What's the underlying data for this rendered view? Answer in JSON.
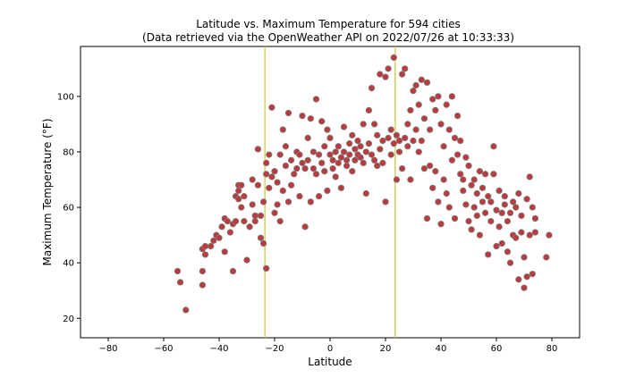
{
  "chart_data": {
    "type": "scatter",
    "title_line1": "Latitude vs. Maximum Temperature for 594 cities",
    "title_line2": "(Data retrieved via the OpenWeather API on 2022/07/26 at 10:33:33)",
    "xlabel": "Latitude",
    "ylabel": "Maximum Temperature (°F)",
    "xlim": [
      -90,
      90
    ],
    "ylim": [
      13,
      118
    ],
    "xticks": [
      -80,
      -60,
      -40,
      -20,
      0,
      20,
      40,
      60,
      80
    ],
    "yticks": [
      20,
      40,
      60,
      80,
      100
    ],
    "grid": false,
    "reference_lines_x": [
      -23.5,
      23.5
    ],
    "colors": {
      "marker_fill": "#c2373a",
      "marker_edge": "#7a7a7a",
      "reference_line": "#d4c84a"
    },
    "points": [
      [
        -55,
        37
      ],
      [
        -54,
        33
      ],
      [
        -52,
        23
      ],
      [
        -46,
        45
      ],
      [
        -46,
        37
      ],
      [
        -46,
        32
      ],
      [
        -45,
        43
      ],
      [
        -45,
        46
      ],
      [
        -43,
        46
      ],
      [
        -42,
        48
      ],
      [
        -41,
        50
      ],
      [
        -40,
        49
      ],
      [
        -39,
        53
      ],
      [
        -38,
        56
      ],
      [
        -38,
        44
      ],
      [
        -37,
        55
      ],
      [
        -36,
        51
      ],
      [
        -35,
        37
      ],
      [
        -35,
        54
      ],
      [
        -34,
        64
      ],
      [
        -34,
        55
      ],
      [
        -33,
        66
      ],
      [
        -33,
        68
      ],
      [
        -33,
        63
      ],
      [
        -32,
        68
      ],
      [
        -32,
        60
      ],
      [
        -31,
        55
      ],
      [
        -31,
        64
      ],
      [
        -30,
        41
      ],
      [
        -29,
        53
      ],
      [
        -28,
        70
      ],
      [
        -28,
        61
      ],
      [
        -27,
        55
      ],
      [
        -27,
        57
      ],
      [
        -26,
        81
      ],
      [
        -26,
        68
      ],
      [
        -25,
        49
      ],
      [
        -25,
        57
      ],
      [
        -24,
        47
      ],
      [
        -24,
        62
      ],
      [
        -23,
        72
      ],
      [
        -23,
        38
      ],
      [
        -23,
        76
      ],
      [
        -22,
        79
      ],
      [
        -22,
        67
      ],
      [
        -21,
        71
      ],
      [
        -21,
        96
      ],
      [
        -20,
        73
      ],
      [
        -20,
        58
      ],
      [
        -19,
        69
      ],
      [
        -19,
        61
      ],
      [
        -18,
        55
      ],
      [
        -18,
        79
      ],
      [
        -17,
        88
      ],
      [
        -17,
        66
      ],
      [
        -16,
        82
      ],
      [
        -16,
        75
      ],
      [
        -15,
        94
      ],
      [
        -15,
        62
      ],
      [
        -14,
        68
      ],
      [
        -14,
        77
      ],
      [
        -13,
        72
      ],
      [
        -12,
        74
      ],
      [
        -12,
        80
      ],
      [
        -11,
        64
      ],
      [
        -11,
        79
      ],
      [
        -10,
        93
      ],
      [
        -10,
        76
      ],
      [
        -9,
        53
      ],
      [
        -9,
        74
      ],
      [
        -8,
        85
      ],
      [
        -8,
        77
      ],
      [
        -7,
        92
      ],
      [
        -7,
        62
      ],
      [
        -6,
        80
      ],
      [
        -6,
        74
      ],
      [
        -5,
        99
      ],
      [
        -5,
        72
      ],
      [
        -4,
        79
      ],
      [
        -4,
        64
      ],
      [
        -3,
        91
      ],
      [
        -3,
        76
      ],
      [
        -2,
        82
      ],
      [
        -2,
        73
      ],
      [
        -1,
        88
      ],
      [
        -1,
        66
      ],
      [
        0,
        85
      ],
      [
        0,
        79
      ],
      [
        1,
        77
      ],
      [
        1,
        74
      ],
      [
        2,
        80
      ],
      [
        2,
        71
      ],
      [
        3,
        76
      ],
      [
        3,
        82
      ],
      [
        4,
        78
      ],
      [
        4,
        67
      ],
      [
        5,
        80
      ],
      [
        5,
        89
      ],
      [
        6,
        75
      ],
      [
        6,
        77
      ],
      [
        7,
        83
      ],
      [
        7,
        79
      ],
      [
        8,
        86
      ],
      [
        8,
        73
      ],
      [
        9,
        81
      ],
      [
        9,
        77
      ],
      [
        10,
        84
      ],
      [
        10,
        79
      ],
      [
        11,
        78
      ],
      [
        11,
        82
      ],
      [
        12,
        90
      ],
      [
        12,
        76
      ],
      [
        13,
        80
      ],
      [
        13,
        65
      ],
      [
        14,
        95
      ],
      [
        14,
        83
      ],
      [
        15,
        103
      ],
      [
        15,
        79
      ],
      [
        16,
        77
      ],
      [
        16,
        90
      ],
      [
        17,
        86
      ],
      [
        17,
        75
      ],
      [
        18,
        108
      ],
      [
        18,
        81
      ],
      [
        19,
        84
      ],
      [
        19,
        76
      ],
      [
        20,
        107
      ],
      [
        20,
        62
      ],
      [
        21,
        110
      ],
      [
        21,
        85
      ],
      [
        22,
        88
      ],
      [
        22,
        79
      ],
      [
        23,
        114
      ],
      [
        23,
        83
      ],
      [
        24,
        86
      ],
      [
        24,
        70
      ],
      [
        25,
        84
      ],
      [
        25,
        80
      ],
      [
        26,
        108
      ],
      [
        26,
        74
      ],
      [
        27,
        110
      ],
      [
        27,
        85
      ],
      [
        28,
        90
      ],
      [
        28,
        82
      ],
      [
        29,
        95
      ],
      [
        29,
        70
      ],
      [
        30,
        102
      ],
      [
        30,
        84
      ],
      [
        31,
        104
      ],
      [
        31,
        88
      ],
      [
        32,
        97
      ],
      [
        32,
        80
      ],
      [
        33,
        106
      ],
      [
        33,
        84
      ],
      [
        34,
        92
      ],
      [
        34,
        74
      ],
      [
        35,
        105
      ],
      [
        35,
        56
      ],
      [
        36,
        88
      ],
      [
        36,
        75
      ],
      [
        37,
        99
      ],
      [
        37,
        67
      ],
      [
        38,
        95
      ],
      [
        38,
        73
      ],
      [
        39,
        100
      ],
      [
        39,
        62
      ],
      [
        40,
        90
      ],
      [
        40,
        54
      ],
      [
        41,
        82
      ],
      [
        41,
        70
      ],
      [
        42,
        97
      ],
      [
        42,
        65
      ],
      [
        43,
        88
      ],
      [
        43,
        60
      ],
      [
        44,
        100
      ],
      [
        44,
        77
      ],
      [
        45,
        85
      ],
      [
        45,
        56
      ],
      [
        46,
        79
      ],
      [
        46,
        93
      ],
      [
        47,
        84
      ],
      [
        47,
        72
      ],
      [
        48,
        70
      ],
      [
        48,
        66
      ],
      [
        49,
        78
      ],
      [
        49,
        61
      ],
      [
        50,
        75
      ],
      [
        50,
        55
      ],
      [
        51,
        68
      ],
      [
        51,
        52
      ],
      [
        52,
        70
      ],
      [
        52,
        60
      ],
      [
        53,
        65
      ],
      [
        53,
        57
      ],
      [
        54,
        73
      ],
      [
        54,
        50
      ],
      [
        55,
        67
      ],
      [
        55,
        62
      ],
      [
        56,
        72
      ],
      [
        56,
        58
      ],
      [
        57,
        64
      ],
      [
        57,
        43
      ],
      [
        58,
        62
      ],
      [
        58,
        55
      ],
      [
        59,
        72
      ],
      [
        59,
        82
      ],
      [
        60,
        59
      ],
      [
        60,
        46
      ],
      [
        61,
        66
      ],
      [
        61,
        53
      ],
      [
        62,
        58
      ],
      [
        62,
        47
      ],
      [
        63,
        64
      ],
      [
        63,
        61
      ],
      [
        64,
        55
      ],
      [
        64,
        44
      ],
      [
        65,
        58
      ],
      [
        65,
        40
      ],
      [
        66,
        62
      ],
      [
        66,
        50
      ],
      [
        67,
        60
      ],
      [
        67,
        49
      ],
      [
        68,
        65
      ],
      [
        68,
        34
      ],
      [
        69,
        51
      ],
      [
        69,
        57
      ],
      [
        70,
        42
      ],
      [
        70,
        31
      ],
      [
        71,
        63
      ],
      [
        71,
        35
      ],
      [
        72,
        71
      ],
      [
        72,
        50
      ],
      [
        73,
        60
      ],
      [
        73,
        36
      ],
      [
        74,
        56
      ],
      [
        74,
        51
      ],
      [
        78,
        42
      ],
      [
        79,
        50
      ]
    ]
  }
}
